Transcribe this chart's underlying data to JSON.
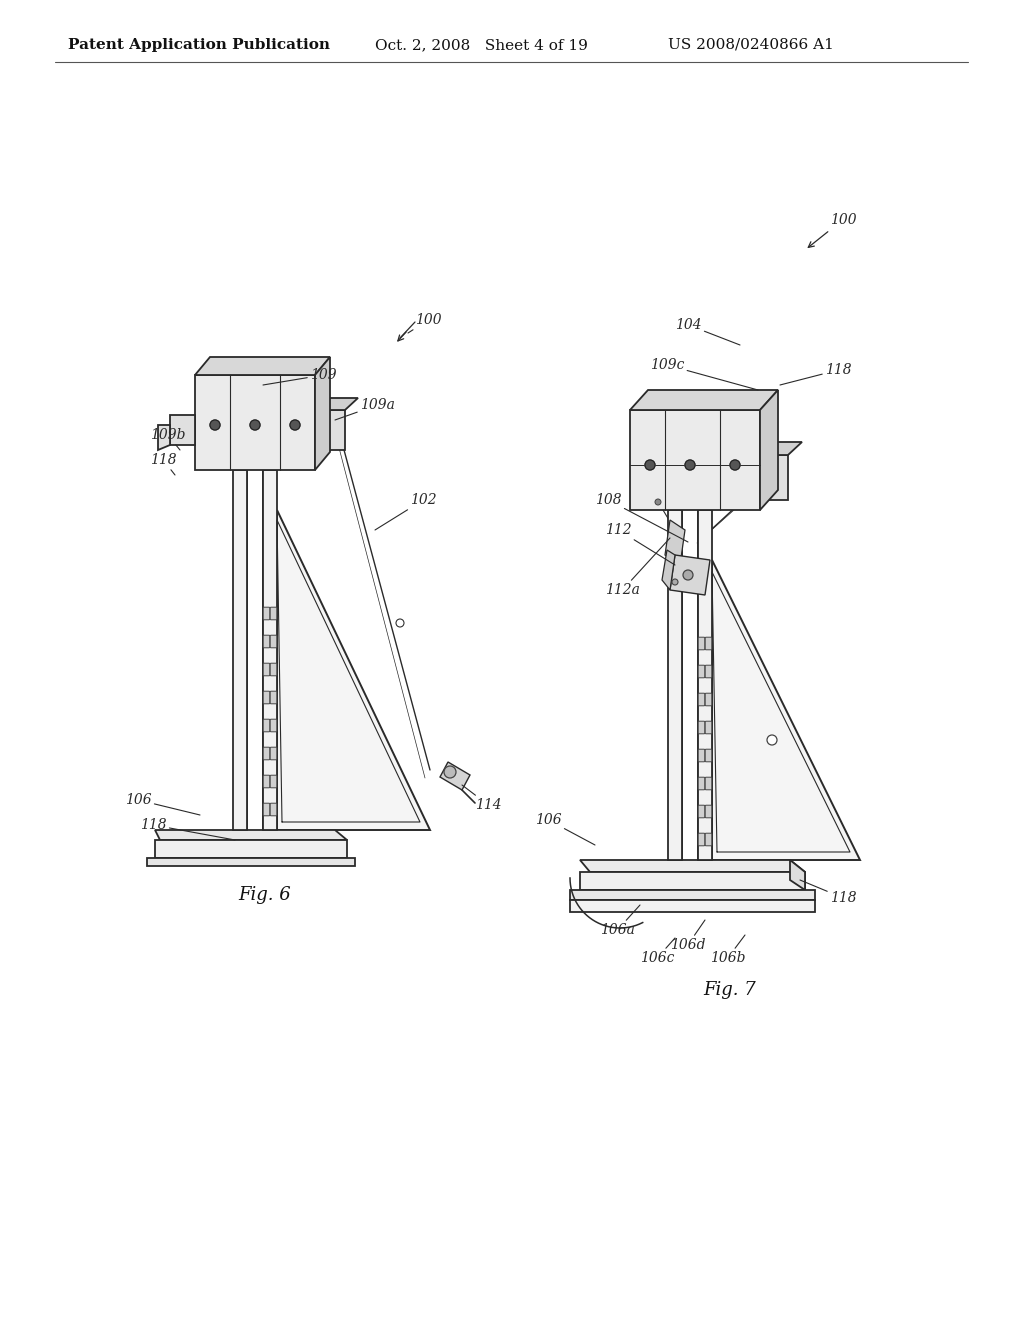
{
  "bg_color": "#ffffff",
  "header_left": "Patent Application Publication",
  "header_middle": "Oct. 2, 2008   Sheet 4 of 19",
  "header_right": "US 2008/0240866 A1",
  "line_color": "#2a2a2a",
  "line_width": 1.3,
  "annotation_fontsize": 10,
  "fig_label_fontsize": 13,
  "fig6_label": "Fig. 6",
  "fig7_label": "Fig. 7"
}
